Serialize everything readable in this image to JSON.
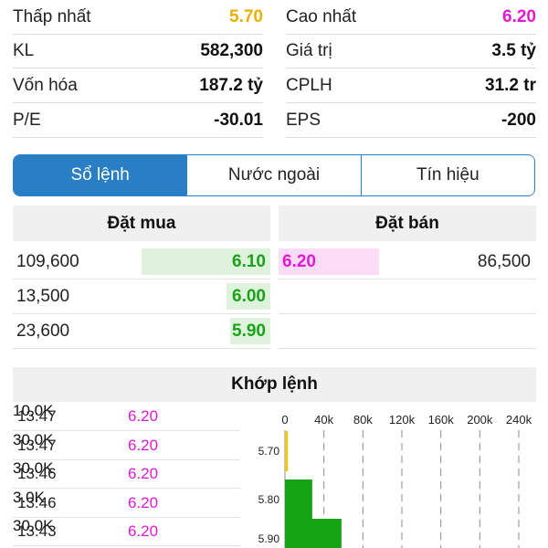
{
  "stats": {
    "left": [
      {
        "label": "Thấp nhất",
        "value": "5.70",
        "color": "#e8b000"
      },
      {
        "label": "KL",
        "value": "582,300",
        "color": "#111111"
      },
      {
        "label": "Vốn hóa",
        "value": "187.2 tỷ",
        "color": "#111111"
      },
      {
        "label": "P/E",
        "value": "-30.01",
        "color": "#111111"
      }
    ],
    "right": [
      {
        "label": "Cao nhất",
        "value": "6.20",
        "color": "#e01ad4"
      },
      {
        "label": "Giá trị",
        "value": "3.5 tỷ",
        "color": "#111111"
      },
      {
        "label": "CPLH",
        "value": "31.2 tr",
        "color": "#111111"
      },
      {
        "label": "EPS",
        "value": "-200",
        "color": "#111111"
      }
    ]
  },
  "tabs": [
    {
      "label": "Sổ lệnh",
      "active": true
    },
    {
      "label": "Nước ngoài",
      "active": false
    },
    {
      "label": "Tín hiệu",
      "active": false
    }
  ],
  "order_book": {
    "buy_header": "Đặt mua",
    "sell_header": "Đặt bán",
    "buy": [
      {
        "volume": "109,600",
        "price": "6.10",
        "depth": 0.5
      },
      {
        "volume": "13,500",
        "price": "6.00",
        "depth": 0.17
      },
      {
        "volume": "23,600",
        "price": "5.90",
        "depth": 0.0
      }
    ],
    "sell": [
      {
        "volume": "86,500",
        "price": "6.20",
        "depth": 0.39
      },
      {
        "volume": "",
        "price": "",
        "depth": 0
      },
      {
        "volume": "",
        "price": "",
        "depth": 0
      }
    ]
  },
  "matched": {
    "header": "Khớp lệnh",
    "trades": [
      {
        "time": "13:47",
        "price": "6.20",
        "volume": "10.0K"
      },
      {
        "time": "13:47",
        "price": "6.20",
        "volume": "30.0K"
      },
      {
        "time": "13:46",
        "price": "6.20",
        "volume": "30.0K"
      },
      {
        "time": "13:46",
        "price": "6.20",
        "volume": "3.0K"
      },
      {
        "time": "13:43",
        "price": "6.20",
        "volume": "30.0K"
      }
    ]
  },
  "chart_data": {
    "type": "bar",
    "orientation": "horizontal",
    "categories": [
      "5.70",
      "5.80",
      "5.90"
    ],
    "values": [
      3000,
      28000,
      58000
    ],
    "bar_colors": [
      "#f5c518",
      "#13a313",
      "#13a313"
    ],
    "x_ticks": [
      "0",
      "40k",
      "80k",
      "120k",
      "160k",
      "200k",
      "240k"
    ],
    "xlim": [
      0,
      240000
    ],
    "grid": true
  }
}
